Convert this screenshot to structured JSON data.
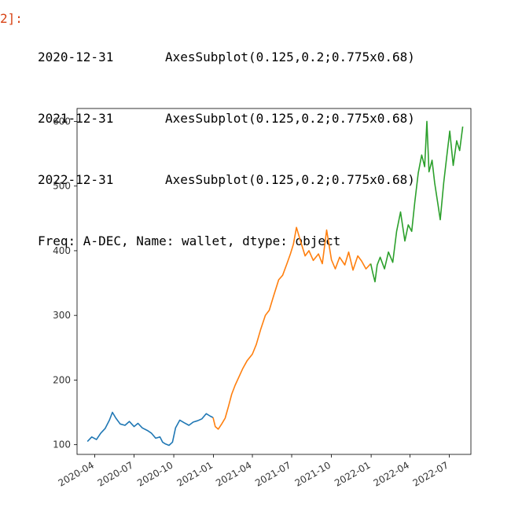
{
  "cell": {
    "prompt": "2]:",
    "output": [
      {
        "key": "2020-12-31",
        "value": "AxesSubplot(0.125,0.2;0.775x0.68)"
      },
      {
        "key": "2021-12-31",
        "value": "AxesSubplot(0.125,0.2;0.775x0.68)"
      },
      {
        "key": "2022-12-31",
        "value": "AxesSubplot(0.125,0.2;0.775x0.68)"
      }
    ],
    "footer": "Freq: A-DEC, Name: wallet, dtype: object"
  },
  "chart_data": {
    "type": "line",
    "title": "",
    "xlabel": "",
    "ylabel": "",
    "ylim": [
      85,
      620
    ],
    "xlim": [
      "2020-02-20",
      "2022-08-20"
    ],
    "grid": false,
    "legend": "none",
    "yticks": [
      100,
      200,
      300,
      400,
      500,
      600
    ],
    "xticks": [
      "2020-04",
      "2020-07",
      "2020-10",
      "2021-01",
      "2021-04",
      "2021-07",
      "2021-10",
      "2022-01",
      "2022-04",
      "2022-07"
    ],
    "series": [
      {
        "color": "#1f77b4",
        "x": [
          "2020-03-15",
          "2020-03-25",
          "2020-04-05",
          "2020-04-15",
          "2020-04-25",
          "2020-05-05",
          "2020-05-12",
          "2020-05-20",
          "2020-05-30",
          "2020-06-10",
          "2020-06-20",
          "2020-07-01",
          "2020-07-10",
          "2020-07-20",
          "2020-08-01",
          "2020-08-10",
          "2020-08-20",
          "2020-08-30",
          "2020-09-05",
          "2020-09-12",
          "2020-09-20",
          "2020-09-28",
          "2020-10-05",
          "2020-10-15",
          "2020-10-25",
          "2020-11-05",
          "2020-11-15",
          "2020-11-25",
          "2020-12-05",
          "2020-12-15",
          "2020-12-25",
          "2020-12-31"
        ],
        "values": [
          105,
          112,
          108,
          118,
          125,
          138,
          150,
          141,
          132,
          130,
          136,
          128,
          133,
          126,
          122,
          118,
          110,
          112,
          104,
          101,
          99,
          104,
          126,
          138,
          134,
          130,
          135,
          137,
          140,
          148,
          144,
          142
        ]
      },
      {
        "color": "#ff7f0e",
        "x": [
          "2020-12-31",
          "2021-01-05",
          "2021-01-12",
          "2021-01-20",
          "2021-01-28",
          "2021-02-05",
          "2021-02-12",
          "2021-02-20",
          "2021-03-01",
          "2021-03-10",
          "2021-03-20",
          "2021-04-01",
          "2021-04-10",
          "2021-04-20",
          "2021-05-01",
          "2021-05-10",
          "2021-05-20",
          "2021-06-01",
          "2021-06-10",
          "2021-06-20",
          "2021-06-28",
          "2021-07-05",
          "2021-07-12",
          "2021-07-20",
          "2021-08-01",
          "2021-08-10",
          "2021-08-20",
          "2021-09-01",
          "2021-09-10",
          "2021-09-20",
          "2021-10-01",
          "2021-10-10",
          "2021-10-20",
          "2021-11-01",
          "2021-11-10",
          "2021-11-20",
          "2021-12-01",
          "2021-12-10",
          "2021-12-20",
          "2021-12-31"
        ],
        "values": [
          142,
          128,
          124,
          132,
          141,
          160,
          178,
          192,
          205,
          218,
          230,
          240,
          255,
          278,
          300,
          308,
          330,
          355,
          362,
          380,
          395,
          410,
          436,
          418,
          392,
          400,
          385,
          395,
          380,
          432,
          386,
          372,
          390,
          378,
          398,
          370,
          392,
          384,
          372,
          380
        ]
      },
      {
        "color": "#2ca02c",
        "x": [
          "2021-12-31",
          "2022-01-05",
          "2022-01-10",
          "2022-01-15",
          "2022-01-22",
          "2022-02-01",
          "2022-02-10",
          "2022-02-20",
          "2022-03-01",
          "2022-03-10",
          "2022-03-20",
          "2022-03-28",
          "2022-04-05",
          "2022-04-12",
          "2022-04-20",
          "2022-04-28",
          "2022-05-05",
          "2022-05-10",
          "2022-05-15",
          "2022-05-22",
          "2022-05-28",
          "2022-06-05",
          "2022-06-10",
          "2022-06-18",
          "2022-06-25",
          "2022-07-02",
          "2022-07-10",
          "2022-07-18",
          "2022-07-25",
          "2022-08-01"
        ],
        "values": [
          380,
          365,
          352,
          378,
          390,
          372,
          398,
          382,
          430,
          460,
          415,
          440,
          430,
          475,
          520,
          548,
          530,
          600,
          522,
          540,
          505,
          470,
          448,
          505,
          545,
          585,
          532,
          570,
          555,
          592
        ]
      }
    ]
  }
}
